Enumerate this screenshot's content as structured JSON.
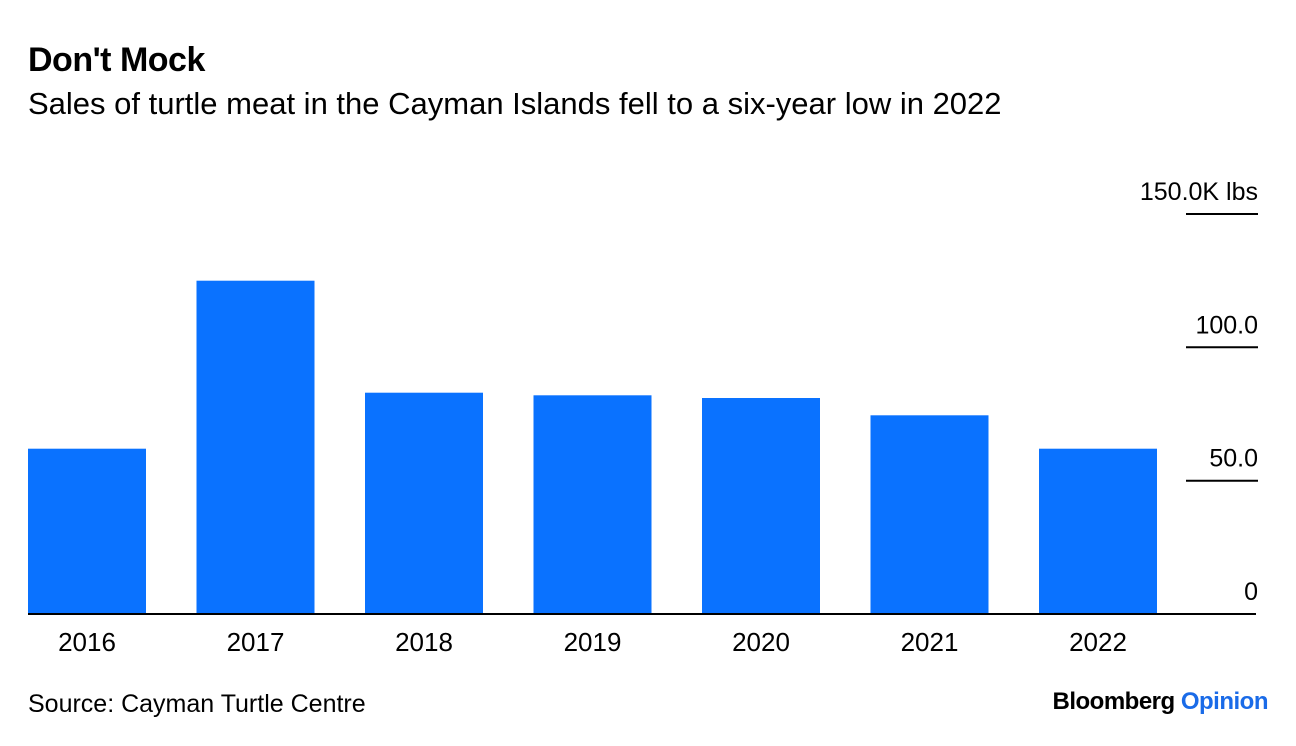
{
  "header": {
    "title": "Don't Mock",
    "subtitle": "Sales of turtle meat in the Cayman Islands fell to a six-year low in 2022"
  },
  "footer": {
    "source": "Source: Cayman Turtle Centre",
    "brand_name": "Bloomberg",
    "brand_suffix": "Opinion"
  },
  "colors": {
    "bar": "#0a72ff",
    "axis": "#000000",
    "brand_accent": "#1a6be8"
  },
  "chart_data": {
    "type": "bar",
    "title": "Don't Mock",
    "subtitle": "Sales of turtle meat in the Cayman Islands fell to a six-year low in 2022",
    "categories": [
      "2016",
      "2017",
      "2018",
      "2019",
      "2020",
      "2021",
      "2022"
    ],
    "values": [
      62,
      125,
      83,
      82,
      81,
      74.5,
      62
    ],
    "ylim": [
      0,
      150
    ],
    "yticks": [
      0,
      50,
      100,
      150
    ],
    "ytick_labels": [
      "0",
      "50.0",
      "100.0",
      "150.0K lbs"
    ],
    "xlabel": "",
    "ylabel": "",
    "unit": "K lbs",
    "grid": false,
    "axis_position": "right"
  }
}
